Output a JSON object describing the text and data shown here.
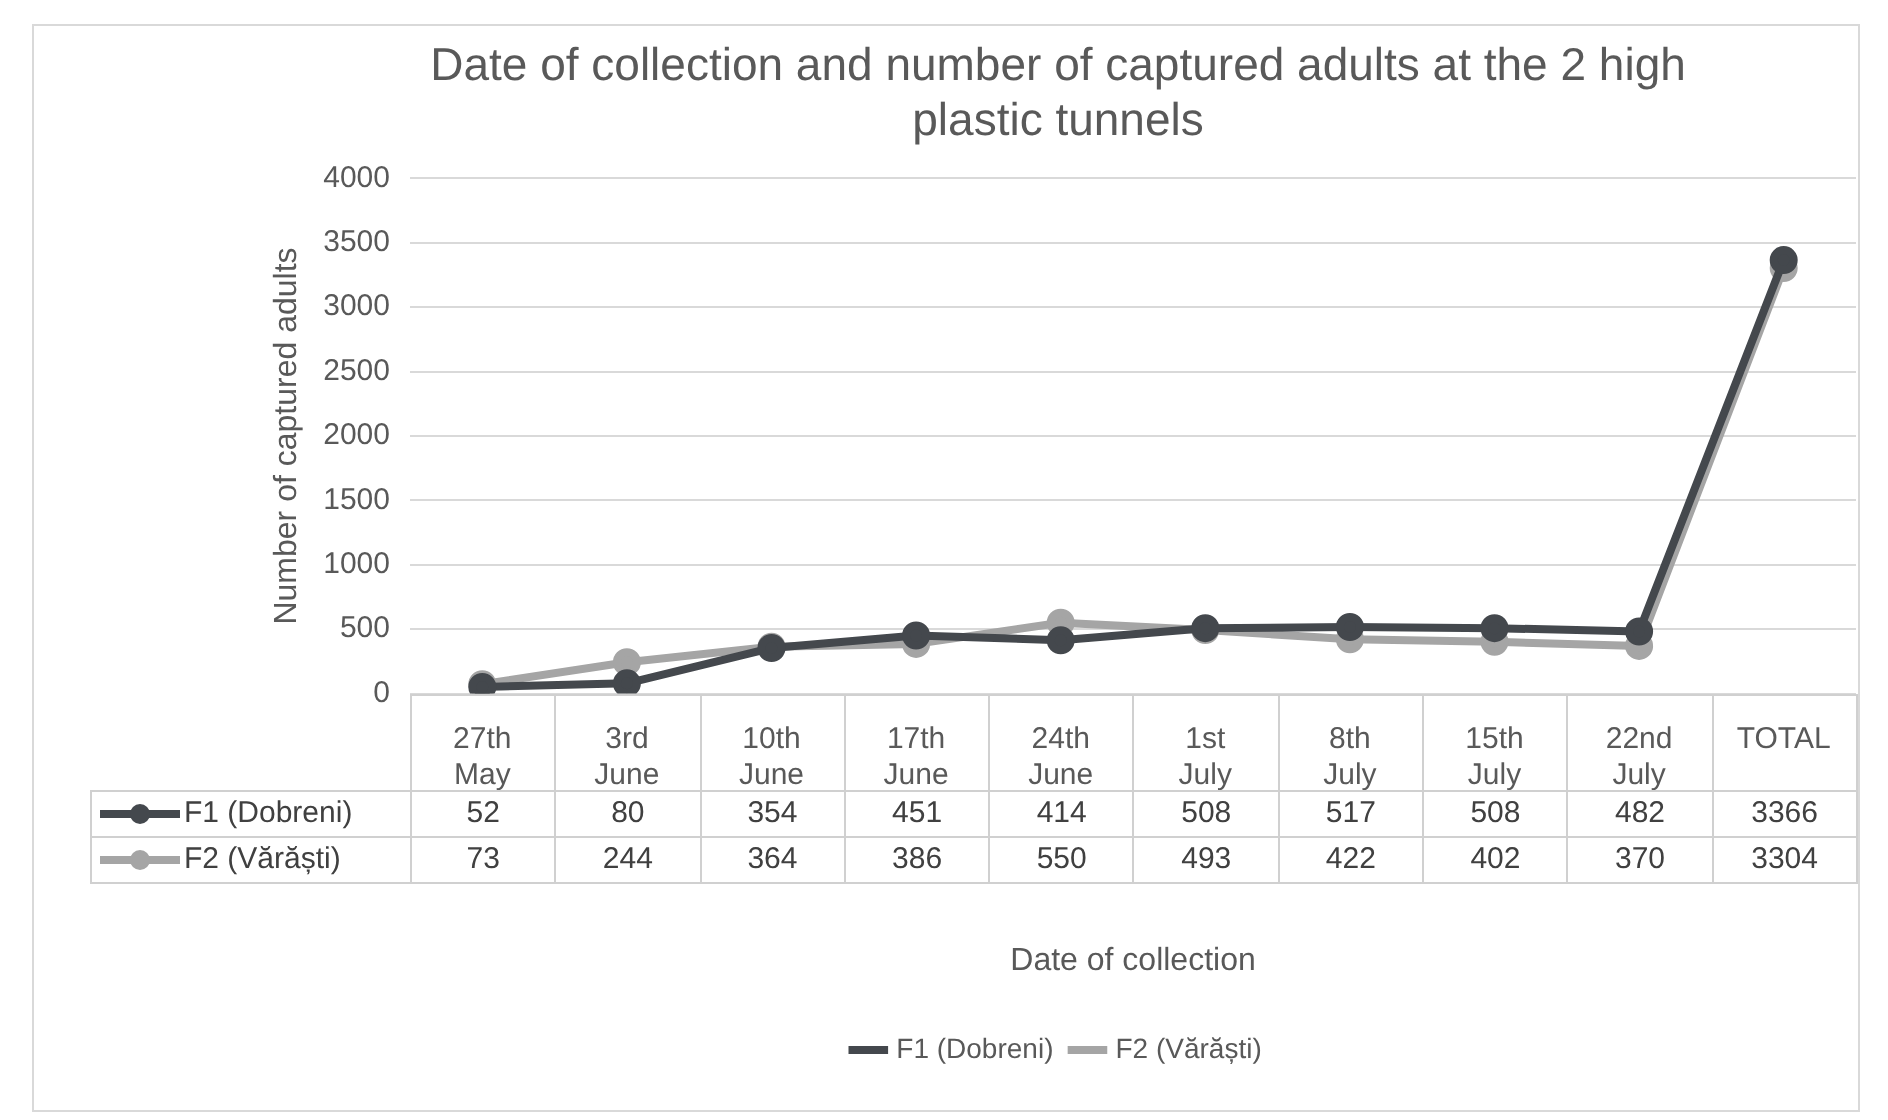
{
  "chart_data": {
    "type": "line",
    "title": "Date of collection and number of captured adults at the 2 high plastic tunnels",
    "xlabel": "Date of collection",
    "ylabel": "Number of captured adults",
    "categories": [
      "27th May",
      "3rd June",
      "10th June",
      "17th June",
      "24th June",
      "1st July",
      "8th July",
      "15th July",
      "22nd July",
      "TOTAL"
    ],
    "series": [
      {
        "name": "F1 (Dobreni)",
        "color": "#44484d",
        "values": [
          52,
          80,
          354,
          451,
          414,
          508,
          517,
          508,
          482,
          3366
        ]
      },
      {
        "name": "F2 (Vărăști)",
        "color": "#a5a5a5",
        "values": [
          73,
          244,
          364,
          386,
          550,
          493,
          422,
          402,
          370,
          3304
        ]
      }
    ],
    "ylim": [
      0,
      4000
    ],
    "yticks": [
      0,
      500,
      1000,
      1500,
      2000,
      2500,
      3000,
      3500,
      4000
    ],
    "grid": "y",
    "legend": "bottom",
    "marker": "circle",
    "line_style": "solid",
    "data_labels": true
  }
}
